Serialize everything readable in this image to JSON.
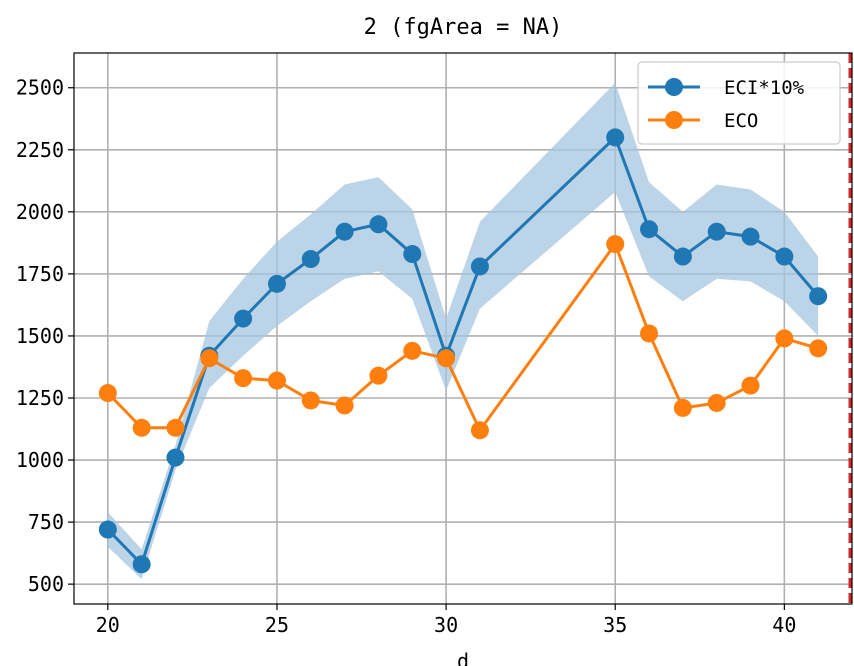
{
  "chart_data": {
    "type": "line",
    "title": "2 (fgArea = NA)",
    "xlabel": "d",
    "ylabel": "",
    "xlim": [
      19,
      42
    ],
    "ylim": [
      420,
      2640
    ],
    "xticks": [
      20,
      25,
      30,
      35,
      40
    ],
    "yticks": [
      500,
      750,
      1000,
      1250,
      1500,
      1750,
      2000,
      2250,
      2500
    ],
    "grid": true,
    "legend_position": "top-right",
    "x": [
      20,
      21,
      22,
      23,
      24,
      25,
      26,
      27,
      28,
      29,
      30,
      31,
      35,
      36,
      37,
      38,
      39,
      40,
      41
    ],
    "series": [
      {
        "name": "ECI*10%",
        "color": "#1f77b4",
        "values": [
          720,
          580,
          1010,
          1420,
          1570,
          1710,
          1810,
          1920,
          1950,
          1830,
          1420,
          1780,
          2300,
          1930,
          1820,
          1920,
          1900,
          1820,
          1660
        ],
        "band_upper": [
          790,
          640,
          1060,
          1560,
          1730,
          1880,
          1990,
          2110,
          2140,
          2010,
          1570,
          1960,
          2520,
          2120,
          2000,
          2110,
          2090,
          2000,
          1820
        ],
        "band_lower": [
          650,
          520,
          960,
          1290,
          1420,
          1540,
          1640,
          1730,
          1760,
          1650,
          1280,
          1610,
          2080,
          1740,
          1640,
          1730,
          1720,
          1640,
          1500
        ],
        "band_color": "#a6c6e0"
      },
      {
        "name": "ECO",
        "color": "#ff7f0e",
        "values": [
          1270,
          1130,
          1130,
          1410,
          1330,
          1320,
          1240,
          1220,
          1340,
          1440,
          1410,
          1120,
          1870,
          1510,
          1210,
          1230,
          1300,
          1490,
          1450
        ]
      }
    ],
    "annotations": [
      {
        "type": "vertical-dashed-line",
        "x": 42,
        "color": "#d62728"
      }
    ]
  }
}
